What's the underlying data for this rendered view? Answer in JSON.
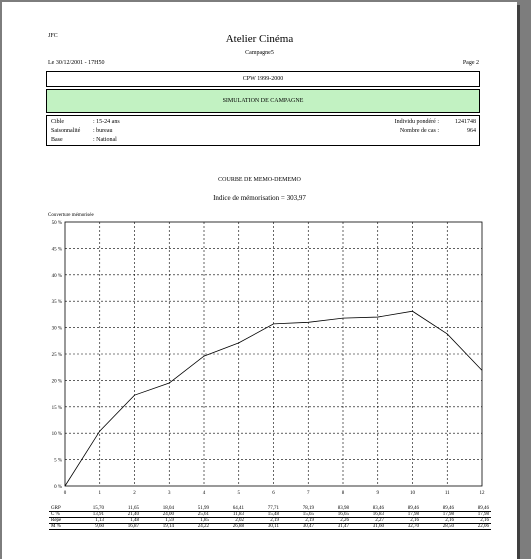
{
  "header": {
    "author": "JFC",
    "app_title": "Atelier Cinéma",
    "subtitle": "Campagne5",
    "date_line": "Le 30/12/2001 - 17H50",
    "page_label": "Page 2"
  },
  "study": {
    "period": "CPW 1999-2000",
    "banner": "SIMULATION DE CAMPAGNE",
    "info_left": [
      {
        "label": "Cible",
        "value": ": 15-24 ans"
      },
      {
        "label": "Saisonnalité",
        "value": ": bureau"
      },
      {
        "label": "Base",
        "value": ": National"
      }
    ],
    "info_right": [
      {
        "label": "Individu pondéré :",
        "value": "1241748"
      },
      {
        "label": "Nombre de cas :",
        "value": "964"
      }
    ]
  },
  "chart_data": {
    "type": "line",
    "title": "COURBE DE MEMO-DEMEMO",
    "subtitle": "Indice de mémorisation = 303,97",
    "ylabel": "Couverture mémorisée",
    "x": [
      0,
      1,
      2,
      3,
      4,
      5,
      6,
      7,
      8,
      9,
      10,
      11,
      12
    ],
    "xticks": [
      "0",
      "1",
      "2",
      "3",
      "4",
      "5",
      "6",
      "7",
      "8",
      "9",
      "10",
      "11",
      "12"
    ],
    "ylim": [
      0,
      50
    ],
    "yticks": [
      "0 %",
      "5 %",
      "10 %",
      "15 %",
      "20 %",
      "25 %",
      "30 %",
      "35 %",
      "40 %",
      "45 %",
      "50 %"
    ],
    "series": [
      {
        "values": [
          0,
          10.4,
          17.2,
          19.5,
          24.6,
          27.1,
          30.7,
          31.0,
          31.8,
          32.0,
          33.1,
          28.8,
          21.9
        ]
      }
    ],
    "grid": true
  },
  "stats_table": {
    "rows": [
      {
        "label": "GRP",
        "values": [
          "15,70",
          "11,65",
          "18,04",
          "51,99",
          "64,41",
          "77,71",
          "78,19",
          "83,98",
          "83,46",
          "89,46",
          "89,46",
          "89,46"
        ]
      },
      {
        "label": "C %",
        "values": [
          "13,91",
          "21,40",
          "24,00",
          "25,61",
          "11,83",
          "15,48",
          "15,65",
          "16,65",
          "16,83",
          "17,98",
          "17,98",
          "17,98"
        ]
      },
      {
        "label": "Répé",
        "values": [
          "1,13",
          "1,48",
          "1,59",
          "1,85",
          "2,02",
          "2,19",
          "2,19",
          "2,26",
          "2,27",
          "2,16",
          "2,16",
          "2,16"
        ]
      },
      {
        "label": "M %",
        "values": [
          "9,60",
          "16,87",
          "19,14",
          "24,22",
          "26,88",
          "30,11",
          "30,47",
          "31,47",
          "31,60",
          "32,70",
          "28,50",
          "22,06"
        ]
      }
    ]
  }
}
